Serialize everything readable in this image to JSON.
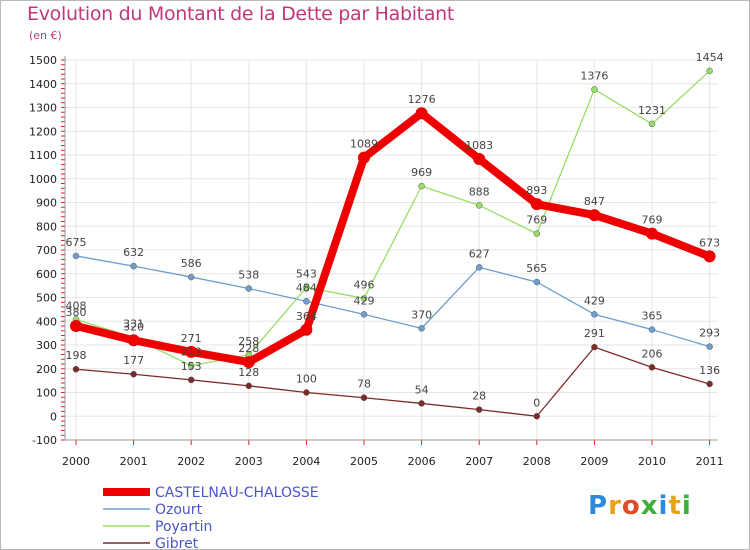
{
  "title": "Evolution du Montant de la Dette par Habitant",
  "subtitle": "(en €)",
  "logo": {
    "text": "Proxiti",
    "colors": [
      "#2e8ad8",
      "#e8a21a",
      "#e24a26",
      "#3fae3a",
      "#2e8ad8",
      "#e8a21a",
      "#3fae3a"
    ]
  },
  "chart_data": {
    "type": "line",
    "x": [
      "2000",
      "2001",
      "2002",
      "2003",
      "2004",
      "2005",
      "2006",
      "2007",
      "2008",
      "2009",
      "2010",
      "2011"
    ],
    "ylim": [
      -100,
      1500
    ],
    "yticks": [
      "-100",
      "0",
      "100",
      "200",
      "300",
      "400",
      "500",
      "600",
      "700",
      "800",
      "900",
      "1000",
      "1100",
      "1200",
      "1300",
      "1400",
      "1500"
    ],
    "grid": true,
    "legend": "bottom-left",
    "series": [
      {
        "name": "CASTELNAU-CHALOSSE",
        "color": "#ee0000",
        "values": [
          380,
          320,
          271,
          228,
          364,
          1089,
          1276,
          1083,
          893,
          847,
          769,
          673
        ],
        "labels": [
          "380",
          "320",
          "271",
          "228",
          "364",
          "1089",
          "1276",
          "1083",
          "893",
          "847",
          "769",
          "673"
        ]
      },
      {
        "name": "Ozourt",
        "color": "#6d9fcd",
        "values": [
          675,
          632,
          586,
          538,
          484,
          429,
          370,
          627,
          565,
          429,
          365,
          293
        ],
        "labels": [
          "675",
          "632",
          "586",
          "538",
          "484",
          "429",
          "370",
          "627",
          "565",
          "429",
          "365",
          "293"
        ]
      },
      {
        "name": "Poyartin",
        "color": "#99dd66",
        "values": [
          408,
          331,
          213,
          258,
          543,
          496,
          969,
          888,
          769,
          1376,
          1231,
          1454
        ],
        "labels": [
          "408",
          "331",
          "213",
          "258",
          "543",
          "496",
          "969",
          "888",
          "769",
          "1376",
          "1231",
          "1454"
        ]
      },
      {
        "name": "Gibret",
        "color": "#7b2a2a",
        "values": [
          198,
          177,
          153,
          128,
          100,
          78,
          54,
          28,
          0,
          291,
          206,
          136
        ],
        "labels": [
          "198",
          "177",
          "153",
          "128",
          "100",
          "78",
          "54",
          "28",
          "0",
          "291",
          "206",
          "136"
        ]
      }
    ]
  }
}
